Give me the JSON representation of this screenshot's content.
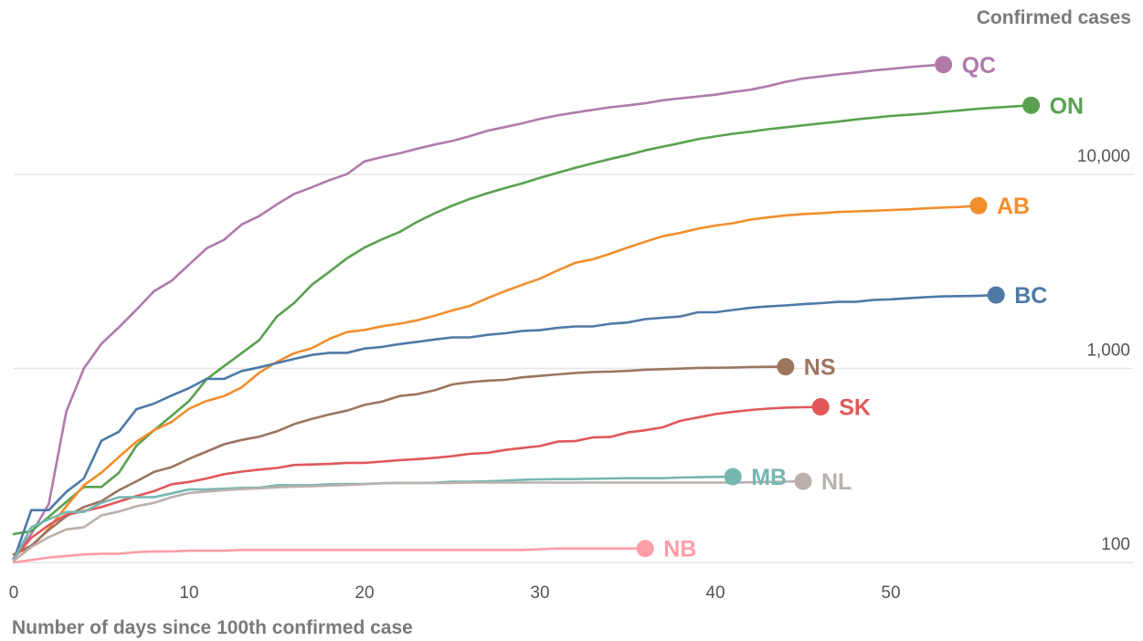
{
  "chart_data": {
    "type": "line",
    "title": "",
    "ylabel": "Confirmed cases",
    "xlabel": "Number of days since 100th confirmed case",
    "yscale": "log",
    "ylim": [
      100,
      48000
    ],
    "xlim": [
      0,
      62
    ],
    "grid": true,
    "x_ticks": [
      0,
      10,
      20,
      30,
      40,
      50
    ],
    "x_tick_labels": [
      "0",
      "10",
      "20",
      "30",
      "40",
      "50"
    ],
    "y_ticks": [
      100,
      1000,
      10000
    ],
    "y_tick_labels": [
      "100",
      "1,000",
      "10,000"
    ],
    "series": [
      {
        "name": "QC",
        "color": "#b07aab",
        "x": [
          0,
          1,
          2,
          3,
          4,
          5,
          6,
          7,
          8,
          9,
          10,
          11,
          12,
          13,
          14,
          15,
          16,
          17,
          18,
          19,
          20,
          21,
          22,
          23,
          24,
          25,
          26,
          27,
          28,
          29,
          30,
          31,
          32,
          33,
          34,
          35,
          36,
          37,
          38,
          39,
          40,
          41,
          42,
          43,
          44,
          45,
          46,
          47,
          48,
          49,
          50,
          51,
          52,
          53
        ],
        "y": [
          104,
          140,
          200,
          600,
          1000,
          1340,
          1630,
          2010,
          2500,
          2830,
          3430,
          4160,
          4610,
          5520,
          6100,
          7000,
          7940,
          8580,
          9340,
          10030,
          11680,
          12290,
          12850,
          13560,
          14250,
          14860,
          15750,
          16790,
          17520,
          18350,
          19320,
          20130,
          20830,
          21520,
          22170,
          22690,
          23270,
          24110,
          24660,
          25200,
          25750,
          26600,
          27300,
          28500,
          30000,
          31200,
          32000,
          32800,
          33500,
          34300,
          35000,
          35700,
          36300,
          36800
        ]
      },
      {
        "name": "ON",
        "color": "#59a14f",
        "x": [
          0,
          1,
          2,
          3,
          4,
          5,
          6,
          7,
          8,
          9,
          10,
          11,
          12,
          13,
          14,
          15,
          16,
          17,
          18,
          19,
          20,
          21,
          22,
          23,
          24,
          25,
          26,
          27,
          28,
          29,
          30,
          31,
          32,
          33,
          34,
          35,
          36,
          37,
          38,
          39,
          40,
          41,
          42,
          43,
          44,
          45,
          46,
          47,
          48,
          49,
          50,
          51,
          52,
          53,
          54,
          55,
          56,
          57,
          58
        ],
        "y": [
          140,
          145,
          172,
          205,
          245,
          245,
          290,
          400,
          480,
          570,
          680,
          880,
          1030,
          1200,
          1400,
          1850,
          2180,
          2700,
          3150,
          3700,
          4200,
          4630,
          5050,
          5700,
          6300,
          6900,
          7470,
          8000,
          8500,
          9000,
          9600,
          10200,
          10800,
          11400,
          12000,
          12600,
          13300,
          13900,
          14500,
          15200,
          15700,
          16200,
          16600,
          17100,
          17500,
          17900,
          18300,
          18700,
          19200,
          19600,
          20000,
          20300,
          20600,
          21000,
          21400,
          21800,
          22100,
          22400,
          22700
        ]
      },
      {
        "name": "AB",
        "color": "#f28e2b",
        "x": [
          0,
          1,
          2,
          3,
          4,
          5,
          6,
          7,
          8,
          9,
          10,
          11,
          12,
          13,
          14,
          15,
          16,
          17,
          18,
          19,
          20,
          21,
          22,
          23,
          24,
          25,
          26,
          27,
          28,
          29,
          30,
          31,
          32,
          33,
          34,
          35,
          36,
          37,
          38,
          39,
          40,
          41,
          42,
          43,
          44,
          45,
          46,
          47,
          48,
          49,
          50,
          51,
          52,
          53,
          54,
          55
        ],
        "y": [
          110,
          120,
          150,
          195,
          250,
          290,
          350,
          420,
          480,
          530,
          620,
          680,
          720,
          800,
          950,
          1080,
          1200,
          1270,
          1420,
          1540,
          1580,
          1650,
          1700,
          1770,
          1870,
          1990,
          2100,
          2300,
          2500,
          2700,
          2900,
          3200,
          3500,
          3650,
          3900,
          4200,
          4500,
          4800,
          5000,
          5250,
          5450,
          5600,
          5850,
          6000,
          6150,
          6250,
          6300,
          6400,
          6450,
          6500,
          6550,
          6600,
          6680,
          6750,
          6800,
          6900
        ]
      },
      {
        "name": "BC",
        "color": "#4e79a7",
        "x": [
          0,
          1,
          2,
          3,
          4,
          5,
          6,
          7,
          8,
          9,
          10,
          11,
          12,
          13,
          14,
          15,
          16,
          17,
          18,
          19,
          20,
          21,
          22,
          23,
          24,
          25,
          26,
          27,
          28,
          29,
          30,
          31,
          32,
          33,
          34,
          35,
          36,
          37,
          38,
          39,
          40,
          41,
          42,
          43,
          44,
          45,
          46,
          47,
          48,
          49,
          50,
          51,
          52,
          53,
          54,
          55,
          56
        ],
        "y": [
          103,
          186,
          186,
          231,
          271,
          424,
          472,
          617,
          659,
          725,
          792,
          884,
          884,
          970,
          1013,
          1066,
          1121,
          1174,
          1203,
          1203,
          1266,
          1291,
          1336,
          1370,
          1410,
          1445,
          1445,
          1490,
          1517,
          1561,
          1575,
          1618,
          1647,
          1647,
          1699,
          1724,
          1795,
          1824,
          1853,
          1948,
          1948,
          2000,
          2053,
          2087,
          2112,
          2145,
          2171,
          2203,
          2203,
          2255,
          2270,
          2300,
          2330,
          2350,
          2360,
          2370,
          2390
        ]
      },
      {
        "name": "NS",
        "color": "#9c755f",
        "x": [
          0,
          1,
          2,
          3,
          4,
          5,
          6,
          7,
          8,
          9,
          10,
          11,
          12,
          13,
          14,
          15,
          16,
          17,
          18,
          19,
          20,
          21,
          22,
          23,
          24,
          25,
          26,
          27,
          28,
          29,
          30,
          31,
          32,
          33,
          34,
          35,
          36,
          37,
          38,
          39,
          40,
          41,
          42,
          43,
          44
        ],
        "y": [
          110,
          122,
          147,
          173,
          193,
          207,
          236,
          262,
          293,
          310,
          342,
          373,
          407,
          428,
          445,
          474,
          517,
          549,
          579,
          606,
          649,
          675,
          721,
          737,
          772,
          827,
          850,
          865,
          873,
          900,
          915,
          932,
          947,
          959,
          963,
          971,
          985,
          991,
          998,
          1007,
          1008,
          1011,
          1018,
          1020,
          1020
        ]
      },
      {
        "name": "SK",
        "color": "#e15759",
        "x": [
          0,
          1,
          2,
          3,
          4,
          5,
          6,
          7,
          8,
          9,
          10,
          11,
          12,
          13,
          14,
          15,
          16,
          17,
          18,
          19,
          20,
          21,
          22,
          23,
          24,
          25,
          26,
          27,
          28,
          29,
          30,
          31,
          32,
          33,
          34,
          35,
          36,
          37,
          38,
          39,
          40,
          41,
          42,
          43,
          44,
          45,
          46
        ],
        "y": [
          105,
          134,
          156,
          176,
          184,
          193,
          206,
          220,
          233,
          253,
          260,
          271,
          285,
          294,
          301,
          307,
          318,
          320,
          322,
          326,
          326,
          331,
          337,
          341,
          346,
          353,
          363,
          367,
          380,
          389,
          398,
          420,
          422,
          441,
          443,
          468,
          480,
          497,
          537,
          559,
          582,
          597,
          611,
          621,
          628,
          631,
          634
        ]
      },
      {
        "name": "MB",
        "color": "#76b7b2",
        "x": [
          0,
          1,
          2,
          3,
          4,
          5,
          6,
          7,
          8,
          9,
          10,
          11,
          12,
          13,
          14,
          15,
          16,
          17,
          18,
          19,
          20,
          21,
          22,
          23,
          24,
          25,
          26,
          27,
          28,
          29,
          30,
          31,
          32,
          33,
          34,
          35,
          36,
          37,
          38,
          39,
          40,
          41
        ],
        "y": [
          103,
          152,
          167,
          182,
          182,
          203,
          217,
          217,
          217,
          227,
          238,
          238,
          240,
          242,
          243,
          250,
          250,
          250,
          253,
          254,
          254,
          256,
          257,
          257,
          258,
          261,
          261,
          262,
          264,
          267,
          268,
          269,
          269,
          270,
          271,
          272,
          272,
          272,
          274,
          275,
          276,
          277
        ]
      },
      {
        "name": "NL",
        "color": "#bab0ac",
        "x": [
          0,
          1,
          2,
          3,
          4,
          5,
          6,
          7,
          8,
          9,
          10,
          11,
          12,
          13,
          14,
          15,
          16,
          17,
          18,
          19,
          20,
          21,
          22,
          23,
          24,
          25,
          26,
          27,
          28,
          29,
          30,
          31,
          32,
          33,
          34,
          35,
          36,
          37,
          38,
          39,
          40,
          41,
          42,
          43,
          44,
          45
        ],
        "y": [
          102,
          120,
          135,
          148,
          152,
          175,
          183,
          195,
          203,
          217,
          228,
          232,
          236,
          239,
          241,
          244,
          246,
          247,
          249,
          251,
          253,
          256,
          257,
          257,
          257,
          257,
          258,
          258,
          258,
          258,
          258,
          258,
          258,
          258,
          258,
          258,
          258,
          258,
          258,
          258,
          258,
          258,
          259,
          260,
          261,
          262
        ]
      },
      {
        "name": "NB",
        "color": "#ff9da7",
        "x": [
          0,
          1,
          2,
          3,
          4,
          5,
          6,
          7,
          8,
          9,
          10,
          11,
          12,
          13,
          14,
          15,
          16,
          17,
          18,
          19,
          20,
          21,
          22,
          23,
          24,
          25,
          26,
          27,
          28,
          29,
          30,
          31,
          32,
          33,
          34,
          35,
          36
        ],
        "y": [
          100,
          103,
          106,
          108,
          110,
          111,
          111,
          113,
          114,
          114,
          115,
          115,
          115,
          116,
          116,
          116,
          116,
          116,
          116,
          116,
          116,
          116,
          116,
          116,
          116,
          116,
          116,
          116,
          116,
          116,
          117,
          118,
          118,
          118,
          118,
          118,
          118
        ]
      }
    ]
  }
}
